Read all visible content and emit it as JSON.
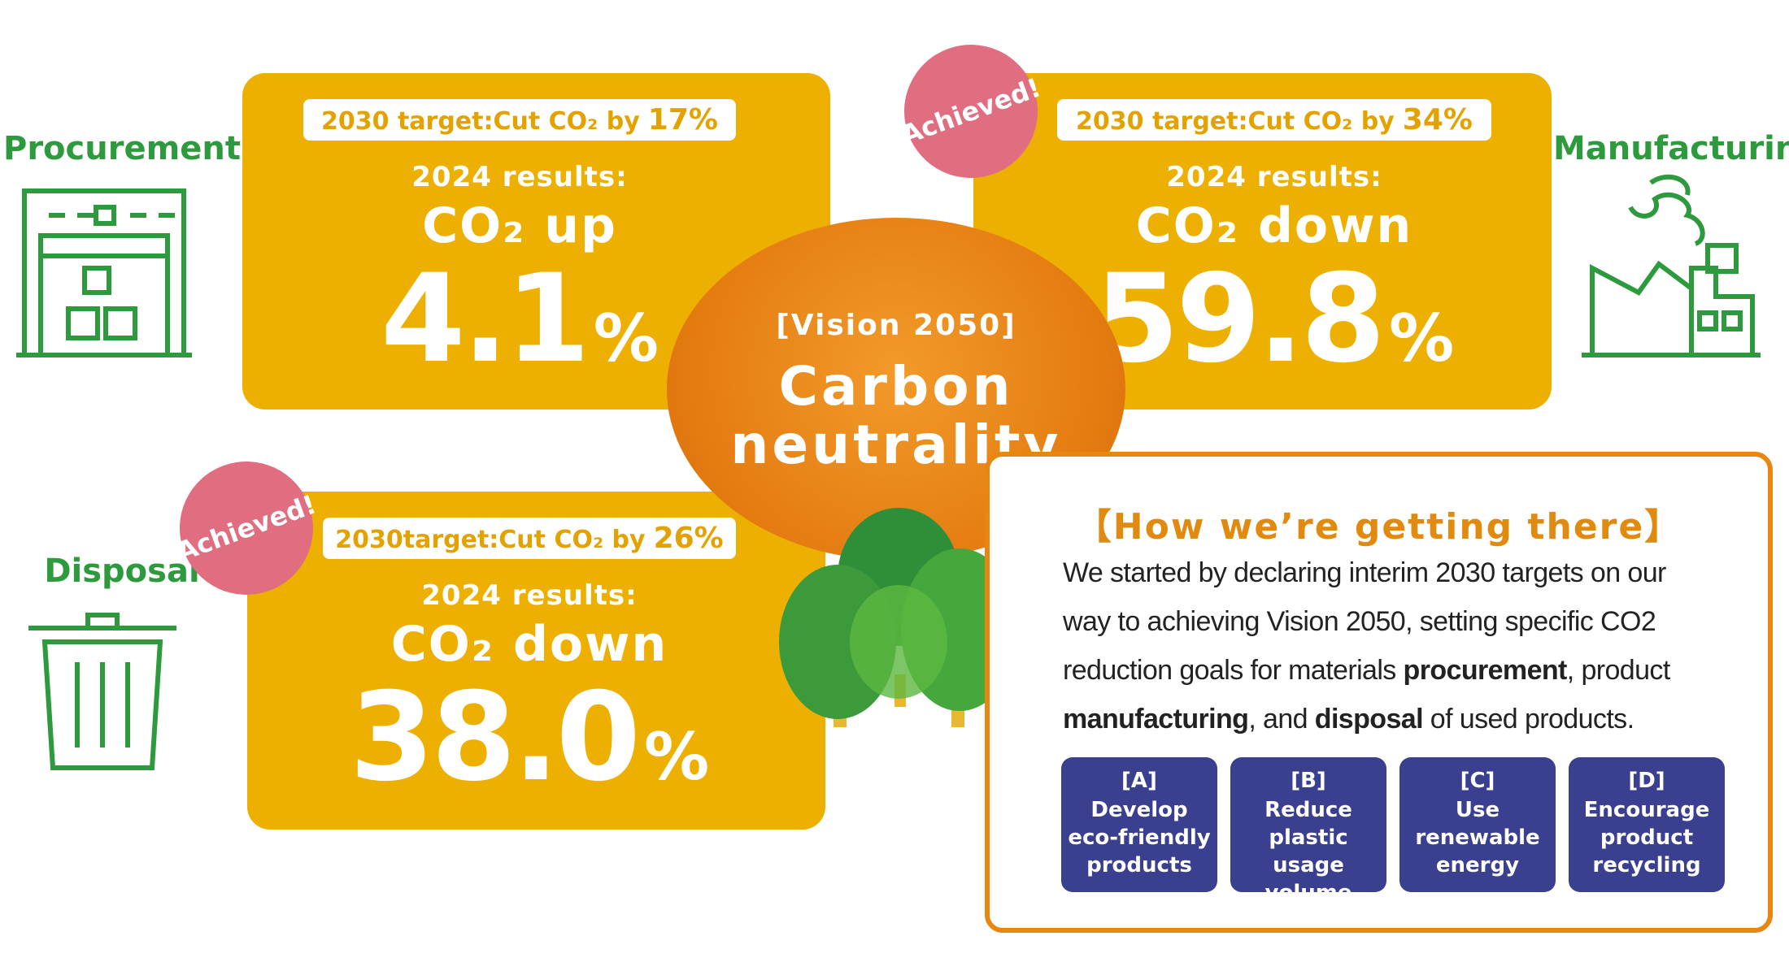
{
  "vision": {
    "bracket": "[Vision 2050]",
    "title": "Carbon neutrality"
  },
  "panels": [
    {
      "label": "Procurement",
      "target": "2030 target:Cut CO₂ by",
      "target_value": "17%",
      "results": "2024 results:",
      "change": "CO₂ up",
      "value": "4.1",
      "unit": "%"
    },
    {
      "label": "Manufacturing",
      "badge": "Achieved!",
      "target": "2030 target:Cut CO₂ by",
      "target_value": "34%",
      "results": "2024 results:",
      "change": "CO₂ down",
      "value": "59.8",
      "unit": "%"
    },
    {
      "label": "Disposal",
      "badge": "Achieved!",
      "target": "2030target:Cut CO₂ by",
      "target_value": "26%",
      "results": "2024 results:",
      "change": "CO₂ down",
      "value": "38.0",
      "unit": "%"
    }
  ],
  "how": {
    "title": "【How we’re getting there】",
    "body": [
      {
        "text": "We started by declaring interim 2030 targets on our way to achieving Vision 2050, setting specific CO2 reduction goals for materials ",
        "bold": false
      },
      {
        "text": "procurement",
        "bold": true
      },
      {
        "text": ", product ",
        "bold": false
      },
      {
        "text": "manufacturing",
        "bold": true
      },
      {
        "text": ", and ",
        "bold": false
      },
      {
        "text": "disposal",
        "bold": true
      },
      {
        "text": " of used products.",
        "bold": false
      }
    ],
    "actions": [
      {
        "code": "[A]",
        "label": "Develop eco-friendly products"
      },
      {
        "code": "[B]",
        "label": "Reduce plastic usage volume"
      },
      {
        "code": "[C]",
        "label": "Use renewable energy"
      },
      {
        "code": "[D]",
        "label": "Encourage product recycling"
      }
    ]
  }
}
